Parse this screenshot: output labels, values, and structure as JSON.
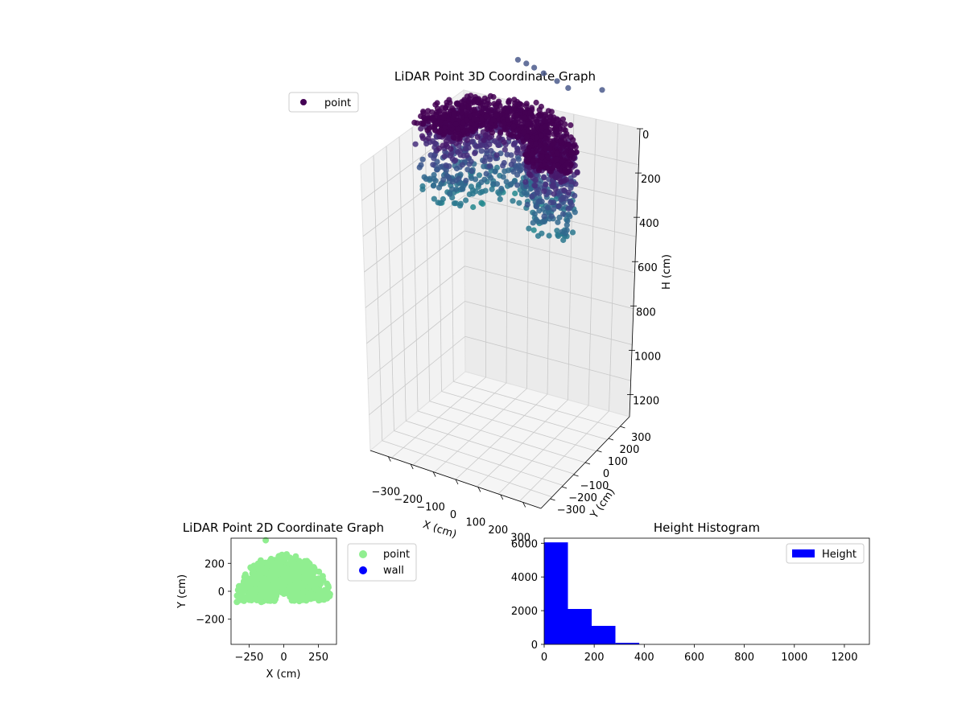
{
  "chart_data": [
    {
      "type": "scatter3d",
      "title": "LiDAR Point 3D Coordinate Graph",
      "xlabel": "X (cm)",
      "ylabel": "Y (cm)",
      "zlabel": "H (cm)",
      "xticks": [
        -300,
        -200,
        -100,
        0,
        100,
        200,
        300
      ],
      "yticks": [
        -300,
        -200,
        -100,
        0,
        100,
        200,
        300
      ],
      "zticks": [
        0,
        200,
        400,
        600,
        800,
        1000,
        1200
      ],
      "zlim": [
        0,
        1300
      ],
      "z_inverted": true,
      "colormap": "viridis",
      "legend": {
        "position": "top-left",
        "entries": [
          "point"
        ]
      },
      "series": [
        {
          "name": "point",
          "color": "#440154",
          "outlier_points": [
            [
              -60,
              360,
              0
            ],
            [
              -20,
              355,
              0
            ],
            [
              20,
              345,
              0
            ],
            [
              70,
              330,
              0
            ],
            [
              140,
              310,
              0
            ],
            [
              200,
              290,
              0
            ],
            [
              320,
              350,
              0
            ]
          ]
        }
      ],
      "grid": true
    },
    {
      "type": "scatter",
      "title": "LiDAR Point 2D Coordinate Graph",
      "xlabel": "X (cm)",
      "ylabel": "Y (cm)",
      "xticks": [
        -250,
        0,
        250
      ],
      "yticks": [
        -200,
        0,
        200
      ],
      "xlim": [
        -380,
        380
      ],
      "ylim": [
        -380,
        380
      ],
      "legend": {
        "position": "outside-right",
        "entries": [
          "point",
          "wall"
        ]
      },
      "series": [
        {
          "name": "point",
          "color": "#90EE90"
        },
        {
          "name": "wall",
          "color": "#0000FF"
        }
      ],
      "grid": false
    },
    {
      "type": "bar",
      "title": "Height Histogram",
      "xticks": [
        0,
        200,
        400,
        600,
        800,
        1000,
        1200
      ],
      "yticks": [
        0,
        2000,
        4000,
        6000
      ],
      "xlim": [
        0,
        1300
      ],
      "ylim": [
        0,
        6300
      ],
      "bins": [
        [
          0,
          95
        ],
        [
          95,
          190
        ],
        [
          190,
          285
        ],
        [
          285,
          380
        ]
      ],
      "values": [
        6050,
        2100,
        1100,
        90
      ],
      "legend": {
        "position": "top-right",
        "entries": [
          "Height"
        ]
      },
      "series": [
        {
          "name": "Height",
          "color": "#0000FF"
        }
      ],
      "grid": false
    }
  ]
}
